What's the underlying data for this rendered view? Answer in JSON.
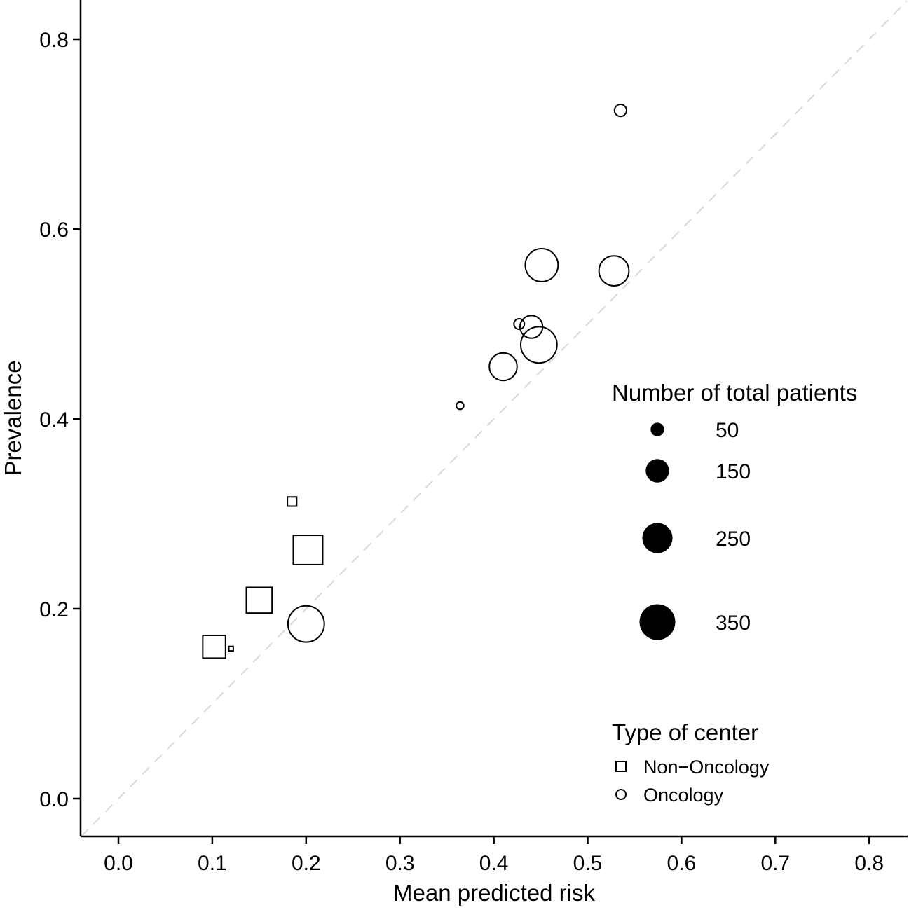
{
  "chart_data": {
    "type": "scatter",
    "title": "",
    "xlabel": "Mean predicted risk",
    "ylabel": "Prevalence",
    "xlim": [
      -0.04,
      0.84
    ],
    "ylim": [
      -0.04,
      0.84
    ],
    "xticks": [
      0.0,
      0.1,
      0.2,
      0.3,
      0.4,
      0.5,
      0.6,
      0.7,
      0.8
    ],
    "yticks": [
      0.0,
      0.2,
      0.4,
      0.6,
      0.8
    ],
    "xtick_labels": [
      "0.0",
      "0.1",
      "0.2",
      "0.3",
      "0.4",
      "0.5",
      "0.6",
      "0.7",
      "0.8"
    ],
    "ytick_labels": [
      "0.0",
      "0.2",
      "0.4",
      "0.6",
      "0.8"
    ],
    "grid": false,
    "reference_line": {
      "type": "identity",
      "style": "dashed",
      "color": "#d9d9d9"
    },
    "points": [
      {
        "x": 0.535,
        "y": 0.725,
        "n": 40,
        "type": "Oncology"
      },
      {
        "x": 0.451,
        "y": 0.562,
        "n": 295,
        "type": "Oncology"
      },
      {
        "x": 0.528,
        "y": 0.556,
        "n": 245,
        "type": "Oncology"
      },
      {
        "x": 0.427,
        "y": 0.5,
        "n": 30,
        "type": "Oncology"
      },
      {
        "x": 0.44,
        "y": 0.497,
        "n": 140,
        "type": "Oncology"
      },
      {
        "x": 0.448,
        "y": 0.478,
        "n": 360,
        "type": "Oncology"
      },
      {
        "x": 0.41,
        "y": 0.455,
        "n": 210,
        "type": "Oncology"
      },
      {
        "x": 0.364,
        "y": 0.414,
        "n": 15,
        "type": "Oncology"
      },
      {
        "x": 0.2,
        "y": 0.184,
        "n": 360,
        "type": "Oncology"
      },
      {
        "x": 0.185,
        "y": 0.313,
        "n": 30,
        "type": "Non-Oncology"
      },
      {
        "x": 0.202,
        "y": 0.262,
        "n": 300,
        "type": "Non-Oncology"
      },
      {
        "x": 0.15,
        "y": 0.209,
        "n": 230,
        "type": "Non-Oncology"
      },
      {
        "x": 0.102,
        "y": 0.16,
        "n": 180,
        "type": "Non-Oncology"
      },
      {
        "x": 0.12,
        "y": 0.158,
        "n": 7,
        "type": "Non-Oncology"
      }
    ],
    "legend": {
      "position": "right",
      "size_title": "Number of total patients",
      "size_entries": [
        {
          "label": "50",
          "value": 50
        },
        {
          "label": "150",
          "value": 150
        },
        {
          "label": "250",
          "value": 250
        },
        {
          "label": "350",
          "value": 350
        }
      ],
      "type_title": "Type of center",
      "type_entries": [
        {
          "label": "Non−Oncology",
          "shape": "square"
        },
        {
          "label": "Oncology",
          "shape": "circle"
        }
      ]
    }
  }
}
